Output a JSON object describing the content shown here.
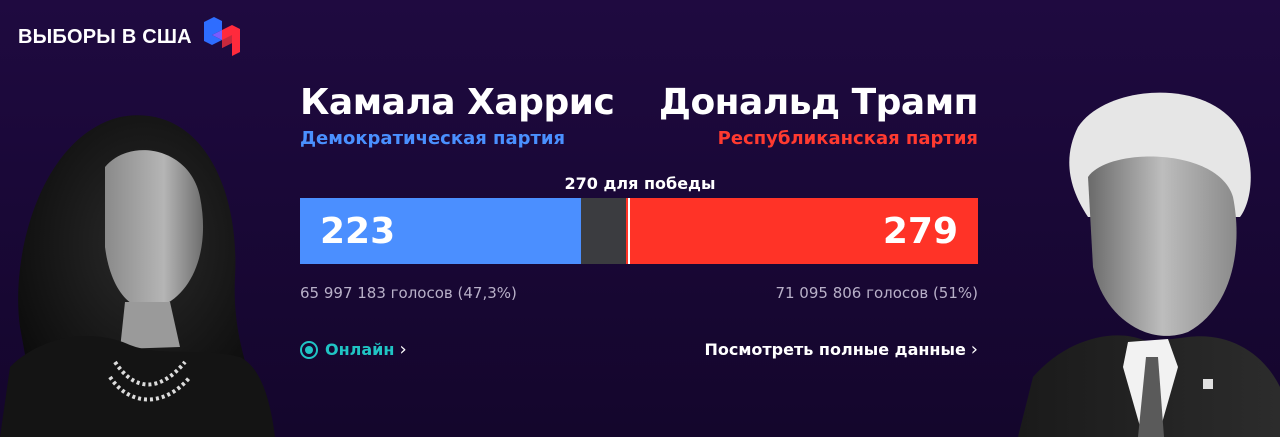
{
  "header": {
    "title": "ВЫБОРЫ В США",
    "logo_icon": "elections-24-logo-icon"
  },
  "colors": {
    "background": "#1a0838",
    "democrat": "#4b8fff",
    "republican": "#ff3327",
    "undecided": "#3b3c40",
    "online": "#20c4c4"
  },
  "candidates": {
    "left": {
      "name": "Камала Харрис",
      "party": "Демократическая партия",
      "electoral_votes": "223",
      "popular_votes": "65 997 183 голосов (47,3%)"
    },
    "right": {
      "name": "Дональд Трамп",
      "party": "Республиканская партия",
      "electoral_votes": "279",
      "popular_votes": "71 095 806 голосов (51%)"
    }
  },
  "bar": {
    "win_label": "270 для победы",
    "total": 538,
    "threshold": 270,
    "dem_value": 223,
    "rep_value": 279
  },
  "links": {
    "online_label": "Онлайн",
    "online_chevron": "›",
    "full_label": "Посмотреть полные данные",
    "full_chevron": "›"
  }
}
